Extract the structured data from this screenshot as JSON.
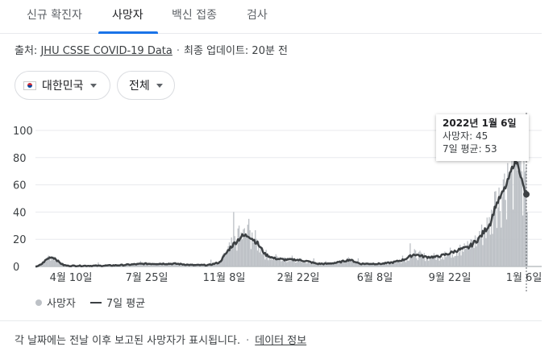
{
  "tabs": [
    {
      "label": "신규 확진자"
    },
    {
      "label": "사망자"
    },
    {
      "label": "백신 접종"
    },
    {
      "label": "검사"
    }
  ],
  "active_tab": "사망자",
  "source": {
    "prefix": "출처:",
    "link": "JHU CSSE COVID-19 Data",
    "updated": "최종 업데이트: 20분 전"
  },
  "filters": {
    "country": "대한민국",
    "range": "전체"
  },
  "tooltip": {
    "date": "2022년 1월 6일",
    "deaths": "사망자: 45",
    "avg": "7일 평균: 53"
  },
  "legend": {
    "bars": "사망자",
    "line": "7일 평균"
  },
  "footer": {
    "note": "각 날짜에는 전날 이후 보고된 사망자가 표시됩니다.",
    "link": "데이터 정보"
  },
  "colors": {
    "bars": "#bdc1c6",
    "line": "#3c4043",
    "accent": "#1a73e8"
  },
  "chart_data": {
    "type": "bar",
    "yticks": [
      "0",
      "20",
      "40",
      "60",
      "80",
      "100"
    ],
    "ylim": [
      0,
      100
    ],
    "xticks": [
      "4월 10일",
      "7월 25일",
      "11월 8일",
      "2월 22일",
      "6월 8일",
      "9월 22일",
      "1월 6일"
    ],
    "series": [
      {
        "name": "사망자",
        "style": "bars"
      },
      {
        "name": "7일 평균",
        "style": "line"
      }
    ],
    "avg_keypoints": [
      [
        0,
        0
      ],
      [
        2,
        0
      ],
      [
        6,
        2
      ],
      [
        10,
        5
      ],
      [
        14,
        7
      ],
      [
        18,
        6
      ],
      [
        22,
        3
      ],
      [
        26,
        1
      ],
      [
        30,
        0.5
      ],
      [
        40,
        0.5
      ],
      [
        60,
        0.5
      ],
      [
        80,
        1
      ],
      [
        100,
        2
      ],
      [
        115,
        2
      ],
      [
        130,
        2
      ],
      [
        145,
        1
      ],
      [
        160,
        1
      ],
      [
        170,
        3
      ],
      [
        180,
        14
      ],
      [
        190,
        22
      ],
      [
        197,
        23
      ],
      [
        205,
        17
      ],
      [
        212,
        9
      ],
      [
        220,
        6
      ],
      [
        230,
        5
      ],
      [
        240,
        5
      ],
      [
        250,
        4
      ],
      [
        260,
        2
      ],
      [
        270,
        2
      ],
      [
        280,
        3
      ],
      [
        290,
        5
      ],
      [
        300,
        2
      ],
      [
        310,
        2
      ],
      [
        320,
        2
      ],
      [
        330,
        3
      ],
      [
        340,
        5
      ],
      [
        345,
        7
      ],
      [
        350,
        9
      ],
      [
        360,
        7
      ],
      [
        370,
        7
      ],
      [
        380,
        9
      ],
      [
        390,
        12
      ],
      [
        400,
        14
      ],
      [
        410,
        21
      ],
      [
        420,
        32
      ],
      [
        425,
        45
      ],
      [
        430,
        52
      ],
      [
        435,
        60
      ],
      [
        440,
        72
      ],
      [
        443,
        78
      ],
      [
        446,
        74
      ],
      [
        450,
        60
      ],
      [
        452,
        55
      ],
      [
        454,
        53
      ]
    ],
    "bar_spikes": [
      [
        12,
        8
      ],
      [
        58,
        3
      ],
      [
        97,
        4
      ],
      [
        162,
        5
      ],
      [
        183,
        40
      ],
      [
        188,
        30
      ],
      [
        197,
        35
      ],
      [
        200,
        25
      ],
      [
        208,
        15
      ],
      [
        222,
        9
      ],
      [
        237,
        8
      ],
      [
        257,
        6
      ],
      [
        268,
        4
      ],
      [
        298,
        6
      ],
      [
        339,
        8
      ],
      [
        346,
        17
      ],
      [
        365,
        8
      ],
      [
        378,
        11
      ],
      [
        392,
        16
      ],
      [
        402,
        20
      ],
      [
        410,
        26
      ],
      [
        418,
        30
      ],
      [
        424,
        55
      ],
      [
        428,
        58
      ],
      [
        432,
        64
      ],
      [
        436,
        76
      ],
      [
        440,
        85
      ],
      [
        442,
        98
      ],
      [
        444,
        84
      ],
      [
        447,
        80
      ],
      [
        449,
        70
      ]
    ],
    "total_days": 455
  }
}
